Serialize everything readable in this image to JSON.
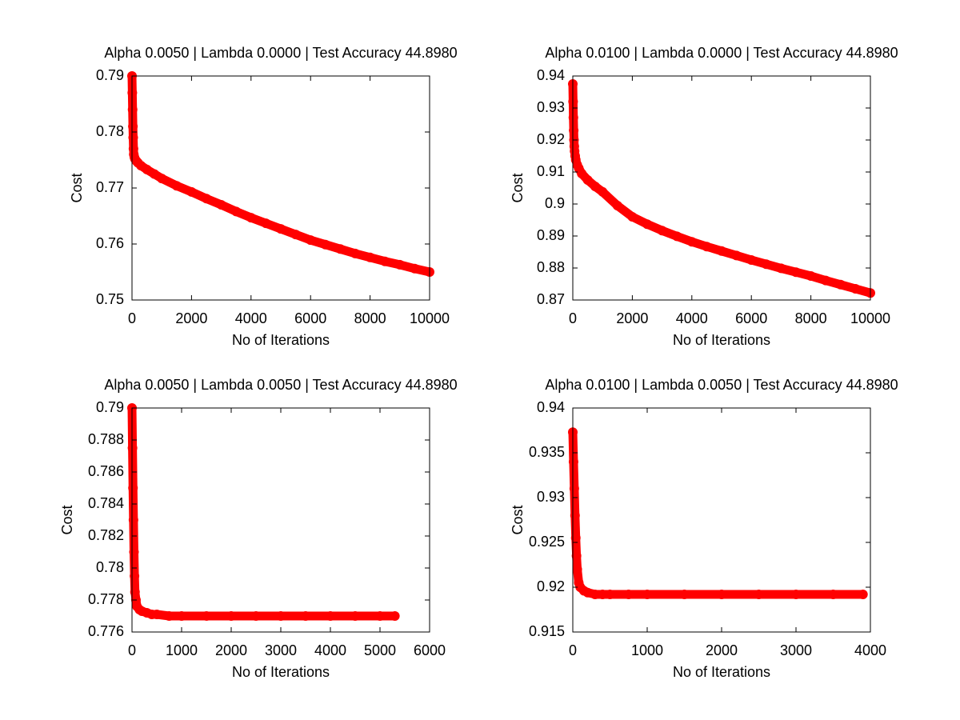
{
  "chart_data": [
    {
      "type": "scatter",
      "title": "Alpha 0.0050 | Lambda 0.0000 | Test Accuracy 44.8980",
      "xlabel": "No of Iterations",
      "ylabel": "Cost",
      "color": "#ff0000",
      "xlim": [
        0,
        10000
      ],
      "xticks": [
        0,
        2000,
        4000,
        6000,
        8000,
        10000
      ],
      "ylim": [
        0.75,
        0.79
      ],
      "yticks": [
        0.75,
        0.76,
        0.77,
        0.78,
        0.79
      ],
      "x": [
        0,
        10,
        20,
        30,
        40,
        50,
        60,
        80,
        100,
        150,
        200,
        300,
        500,
        750,
        1000,
        1500,
        2000,
        2500,
        3000,
        3500,
        4000,
        4500,
        5000,
        5500,
        6000,
        6500,
        7000,
        7500,
        8000,
        8500,
        9000,
        9500,
        10000
      ],
      "values": [
        0.79,
        0.787,
        0.784,
        0.781,
        0.779,
        0.777,
        0.776,
        0.7755,
        0.7752,
        0.7748,
        0.7745,
        0.774,
        0.7733,
        0.7725,
        0.7717,
        0.7704,
        0.7693,
        0.7681,
        0.767,
        0.7658,
        0.7647,
        0.7637,
        0.7627,
        0.7617,
        0.7607,
        0.7599,
        0.7591,
        0.7583,
        0.7576,
        0.7569,
        0.7563,
        0.7556,
        0.755
      ]
    },
    {
      "type": "scatter",
      "title": "Alpha 0.0100 | Lambda 0.0000 | Test Accuracy 44.8980",
      "xlabel": "No of Iterations",
      "ylabel": "Cost",
      "color": "#ff0000",
      "xlim": [
        0,
        10000
      ],
      "xticks": [
        0,
        2000,
        4000,
        6000,
        8000,
        10000
      ],
      "ylim": [
        0.87,
        0.94
      ],
      "yticks": [
        0.87,
        0.88,
        0.89,
        0.9,
        0.91,
        0.92,
        0.93,
        0.94
      ],
      "x": [
        0,
        10,
        20,
        30,
        40,
        50,
        60,
        80,
        100,
        150,
        200,
        300,
        500,
        750,
        1000,
        1500,
        2000,
        2500,
        3000,
        3500,
        4000,
        4500,
        5000,
        5500,
        6000,
        6500,
        7000,
        7500,
        8000,
        8500,
        9000,
        9500,
        10000
      ],
      "values": [
        0.9375,
        0.932,
        0.927,
        0.923,
        0.92,
        0.918,
        0.9165,
        0.915,
        0.9138,
        0.9122,
        0.9112,
        0.9095,
        0.9075,
        0.9055,
        0.9038,
        0.8995,
        0.896,
        0.8937,
        0.8917,
        0.8899,
        0.8882,
        0.8867,
        0.8853,
        0.8839,
        0.8825,
        0.8812,
        0.8799,
        0.8787,
        0.8775,
        0.8761,
        0.8748,
        0.8735,
        0.8722
      ]
    },
    {
      "type": "scatter",
      "title": "Alpha 0.0050 | Lambda 0.0050 | Test Accuracy 44.8980",
      "xlabel": "No of Iterations",
      "ylabel": "Cost",
      "color": "#ff0000",
      "xlim": [
        0,
        6000
      ],
      "xticks": [
        0,
        1000,
        2000,
        3000,
        4000,
        5000,
        6000
      ],
      "ylim": [
        0.776,
        0.79
      ],
      "yticks": [
        0.776,
        0.778,
        0.78,
        0.782,
        0.784,
        0.786,
        0.788,
        0.79
      ],
      "x": [
        0,
        10,
        20,
        30,
        40,
        50,
        60,
        80,
        100,
        150,
        200,
        300,
        400,
        500,
        750,
        1000,
        1500,
        2000,
        2500,
        3000,
        3500,
        4000,
        4500,
        5000,
        5300
      ],
      "values": [
        0.79,
        0.7875,
        0.785,
        0.783,
        0.781,
        0.7795,
        0.7785,
        0.778,
        0.7776,
        0.7774,
        0.7773,
        0.7772,
        0.7771,
        0.7771,
        0.777,
        0.777,
        0.777,
        0.777,
        0.777,
        0.777,
        0.777,
        0.777,
        0.777,
        0.777,
        0.777
      ]
    },
    {
      "type": "scatter",
      "title": "Alpha 0.0100 | Lambda 0.0050 | Test Accuracy 44.8980",
      "xlabel": "No of Iterations",
      "ylabel": "Cost",
      "color": "#ff0000",
      "xlim": [
        0,
        4000
      ],
      "xticks": [
        0,
        1000,
        2000,
        3000,
        4000
      ],
      "ylim": [
        0.915,
        0.94
      ],
      "yticks": [
        0.915,
        0.92,
        0.925,
        0.93,
        0.935,
        0.94
      ],
      "x": [
        0,
        10,
        20,
        30,
        40,
        50,
        60,
        80,
        100,
        150,
        200,
        300,
        400,
        500,
        750,
        1000,
        1500,
        2000,
        2500,
        3000,
        3500,
        3900
      ],
      "values": [
        0.9373,
        0.934,
        0.931,
        0.928,
        0.9255,
        0.9235,
        0.922,
        0.9205,
        0.92,
        0.9196,
        0.9194,
        0.9192,
        0.9192,
        0.9192,
        0.9192,
        0.9192,
        0.9192,
        0.9192,
        0.9192,
        0.9192,
        0.9192,
        0.9192
      ]
    }
  ]
}
